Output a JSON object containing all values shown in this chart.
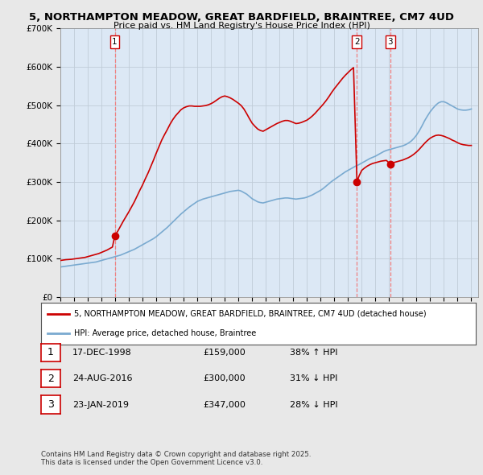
{
  "title": "5, NORTHAMPTON MEADOW, GREAT BARDFIELD, BRAINTREE, CM7 4UD",
  "subtitle": "Price paid vs. HM Land Registry's House Price Index (HPI)",
  "ylim": [
    0,
    700000
  ],
  "yticks": [
    0,
    100000,
    200000,
    300000,
    400000,
    500000,
    600000,
    700000
  ],
  "ytick_labels": [
    "£0",
    "£100K",
    "£200K",
    "£300K",
    "£400K",
    "£500K",
    "£600K",
    "£700K"
  ],
  "xlim_start": 1995.0,
  "xlim_end": 2025.5,
  "bg_color": "#e8e8e8",
  "plot_bg_color": "#dce8f5",
  "grid_color": "#c0ccd8",
  "sale_color": "#cc0000",
  "hpi_color": "#7aaad0",
  "vline_color": "#f08080",
  "sales": [
    {
      "date_num": 1998.97,
      "price": 159000,
      "label": "1"
    },
    {
      "date_num": 2016.65,
      "price": 300000,
      "label": "2"
    },
    {
      "date_num": 2019.07,
      "price": 347000,
      "label": "3"
    }
  ],
  "legend_sale_label": "5, NORTHAMPTON MEADOW, GREAT BARDFIELD, BRAINTREE, CM7 4UD (detached house)",
  "legend_hpi_label": "HPI: Average price, detached house, Braintree",
  "table_rows": [
    {
      "num": "1",
      "date": "17-DEC-1998",
      "price": "£159,000",
      "hpi": "38% ↑ HPI"
    },
    {
      "num": "2",
      "date": "24-AUG-2016",
      "price": "£300,000",
      "hpi": "31% ↓ HPI"
    },
    {
      "num": "3",
      "date": "23-JAN-2019",
      "price": "£347,000",
      "hpi": "28% ↓ HPI"
    }
  ],
  "footer": "Contains HM Land Registry data © Crown copyright and database right 2025.\nThis data is licensed under the Open Government Licence v3.0.",
  "hpi_line": {
    "x": [
      1995.0,
      1995.2,
      1995.4,
      1995.6,
      1995.8,
      1996.0,
      1996.2,
      1996.4,
      1996.6,
      1996.8,
      1997.0,
      1997.2,
      1997.4,
      1997.6,
      1997.8,
      1998.0,
      1998.2,
      1998.4,
      1998.6,
      1998.8,
      1999.0,
      1999.2,
      1999.4,
      1999.6,
      1999.8,
      2000.0,
      2000.2,
      2000.4,
      2000.6,
      2000.8,
      2001.0,
      2001.2,
      2001.4,
      2001.6,
      2001.8,
      2002.0,
      2002.2,
      2002.4,
      2002.6,
      2002.8,
      2003.0,
      2003.2,
      2003.4,
      2003.6,
      2003.8,
      2004.0,
      2004.2,
      2004.4,
      2004.6,
      2004.8,
      2005.0,
      2005.2,
      2005.4,
      2005.6,
      2005.8,
      2006.0,
      2006.2,
      2006.4,
      2006.6,
      2006.8,
      2007.0,
      2007.2,
      2007.4,
      2007.6,
      2007.8,
      2008.0,
      2008.2,
      2008.4,
      2008.6,
      2008.8,
      2009.0,
      2009.2,
      2009.4,
      2009.6,
      2009.8,
      2010.0,
      2010.2,
      2010.4,
      2010.6,
      2010.8,
      2011.0,
      2011.2,
      2011.4,
      2011.6,
      2011.8,
      2012.0,
      2012.2,
      2012.4,
      2012.6,
      2012.8,
      2013.0,
      2013.2,
      2013.4,
      2013.6,
      2013.8,
      2014.0,
      2014.2,
      2014.4,
      2014.6,
      2014.8,
      2015.0,
      2015.2,
      2015.4,
      2015.6,
      2015.8,
      2016.0,
      2016.2,
      2016.4,
      2016.6,
      2016.8,
      2017.0,
      2017.2,
      2017.4,
      2017.6,
      2017.8,
      2018.0,
      2018.2,
      2018.4,
      2018.6,
      2018.8,
      2019.0,
      2019.2,
      2019.4,
      2019.6,
      2019.8,
      2020.0,
      2020.2,
      2020.4,
      2020.6,
      2020.8,
      2021.0,
      2021.2,
      2021.4,
      2021.6,
      2021.8,
      2022.0,
      2022.2,
      2022.4,
      2022.6,
      2022.8,
      2023.0,
      2023.2,
      2023.4,
      2023.6,
      2023.8,
      2024.0,
      2024.2,
      2024.4,
      2024.6,
      2024.8,
      2025.0
    ],
    "y": [
      78000,
      79000,
      80000,
      81000,
      82000,
      83000,
      84000,
      85000,
      86000,
      87000,
      88000,
      89000,
      90000,
      91000,
      93000,
      95000,
      97000,
      99000,
      101000,
      103000,
      105000,
      107000,
      109000,
      112000,
      115000,
      118000,
      121000,
      124000,
      128000,
      132000,
      136000,
      140000,
      144000,
      148000,
      152000,
      157000,
      163000,
      169000,
      175000,
      181000,
      188000,
      195000,
      202000,
      209000,
      216000,
      222000,
      228000,
      234000,
      239000,
      244000,
      249000,
      252000,
      255000,
      257000,
      259000,
      261000,
      263000,
      265000,
      267000,
      269000,
      271000,
      273000,
      275000,
      276000,
      277000,
      278000,
      276000,
      272000,
      268000,
      262000,
      256000,
      252000,
      248000,
      246000,
      245000,
      247000,
      249000,
      251000,
      253000,
      255000,
      256000,
      257000,
      258000,
      258000,
      257000,
      256000,
      255000,
      256000,
      257000,
      258000,
      260000,
      263000,
      266000,
      270000,
      274000,
      278000,
      283000,
      289000,
      295000,
      301000,
      306000,
      311000,
      316000,
      321000,
      326000,
      330000,
      334000,
      338000,
      342000,
      345000,
      349000,
      353000,
      357000,
      361000,
      364000,
      367000,
      371000,
      375000,
      379000,
      382000,
      384000,
      386000,
      388000,
      390000,
      392000,
      394000,
      397000,
      401000,
      406000,
      413000,
      422000,
      433000,
      446000,
      460000,
      472000,
      483000,
      492000,
      500000,
      506000,
      509000,
      509000,
      506000,
      502000,
      498000,
      494000,
      490000,
      488000,
      487000,
      487000,
      488000,
      490000
    ]
  },
  "price_paid_line": {
    "x": [
      1995.0,
      1995.2,
      1995.4,
      1995.6,
      1995.8,
      1996.0,
      1996.2,
      1996.4,
      1996.6,
      1996.8,
      1997.0,
      1997.2,
      1997.4,
      1997.6,
      1997.8,
      1998.0,
      1998.2,
      1998.4,
      1998.6,
      1998.8,
      1998.97,
      1999.2,
      1999.4,
      1999.6,
      1999.8,
      2000.0,
      2000.2,
      2000.4,
      2000.6,
      2000.8,
      2001.0,
      2001.2,
      2001.4,
      2001.6,
      2001.8,
      2002.0,
      2002.2,
      2002.4,
      2002.6,
      2002.8,
      2003.0,
      2003.2,
      2003.4,
      2003.6,
      2003.8,
      2004.0,
      2004.2,
      2004.4,
      2004.6,
      2004.8,
      2005.0,
      2005.2,
      2005.4,
      2005.6,
      2005.8,
      2006.0,
      2006.2,
      2006.4,
      2006.6,
      2006.8,
      2007.0,
      2007.2,
      2007.4,
      2007.6,
      2007.8,
      2008.0,
      2008.2,
      2008.4,
      2008.6,
      2008.8,
      2009.0,
      2009.2,
      2009.4,
      2009.6,
      2009.8,
      2010.0,
      2010.2,
      2010.4,
      2010.6,
      2010.8,
      2011.0,
      2011.2,
      2011.4,
      2011.6,
      2011.8,
      2012.0,
      2012.2,
      2012.4,
      2012.6,
      2012.8,
      2013.0,
      2013.2,
      2013.4,
      2013.6,
      2013.8,
      2014.0,
      2014.2,
      2014.4,
      2014.6,
      2014.8,
      2015.0,
      2015.2,
      2015.4,
      2015.6,
      2015.8,
      2016.0,
      2016.2,
      2016.4,
      2016.65,
      2016.8,
      2017.0,
      2017.2,
      2017.4,
      2017.6,
      2017.8,
      2018.0,
      2018.2,
      2018.4,
      2018.6,
      2018.8,
      2019.07,
      2019.2,
      2019.4,
      2019.6,
      2019.8,
      2020.0,
      2020.2,
      2020.4,
      2020.6,
      2020.8,
      2021.0,
      2021.2,
      2021.4,
      2021.6,
      2021.8,
      2022.0,
      2022.2,
      2022.4,
      2022.6,
      2022.8,
      2023.0,
      2023.2,
      2023.4,
      2023.6,
      2023.8,
      2024.0,
      2024.2,
      2024.4,
      2024.6,
      2024.8,
      2025.0
    ],
    "y": [
      95000,
      96000,
      97000,
      97500,
      98000,
      99000,
      100000,
      101000,
      102000,
      103000,
      105000,
      107000,
      109000,
      111000,
      113000,
      116000,
      119000,
      122000,
      126000,
      130000,
      159000,
      172000,
      185000,
      198000,
      210000,
      222000,
      235000,
      248000,
      263000,
      278000,
      292000,
      308000,
      323000,
      340000,
      357000,
      375000,
      392000,
      409000,
      423000,
      436000,
      450000,
      462000,
      472000,
      480000,
      488000,
      493000,
      496000,
      498000,
      498000,
      497000,
      497000,
      497000,
      498000,
      499000,
      501000,
      504000,
      508000,
      513000,
      518000,
      522000,
      524000,
      522000,
      519000,
      515000,
      510000,
      505000,
      499000,
      490000,
      478000,
      465000,
      453000,
      445000,
      438000,
      434000,
      432000,
      436000,
      440000,
      444000,
      448000,
      452000,
      455000,
      458000,
      460000,
      460000,
      458000,
      455000,
      452000,
      453000,
      455000,
      458000,
      461000,
      466000,
      472000,
      479000,
      487000,
      495000,
      503000,
      512000,
      522000,
      533000,
      543000,
      552000,
      561000,
      570000,
      578000,
      585000,
      592000,
      598000,
      300000,
      315000,
      330000,
      336000,
      341000,
      345000,
      348000,
      350000,
      352000,
      354000,
      355000,
      356000,
      347000,
      349000,
      351000,
      353000,
      355000,
      357000,
      360000,
      363000,
      367000,
      372000,
      378000,
      385000,
      393000,
      401000,
      408000,
      414000,
      418000,
      421000,
      422000,
      421000,
      419000,
      416000,
      413000,
      409000,
      406000,
      402000,
      399000,
      397000,
      396000,
      395000,
      395000
    ]
  }
}
